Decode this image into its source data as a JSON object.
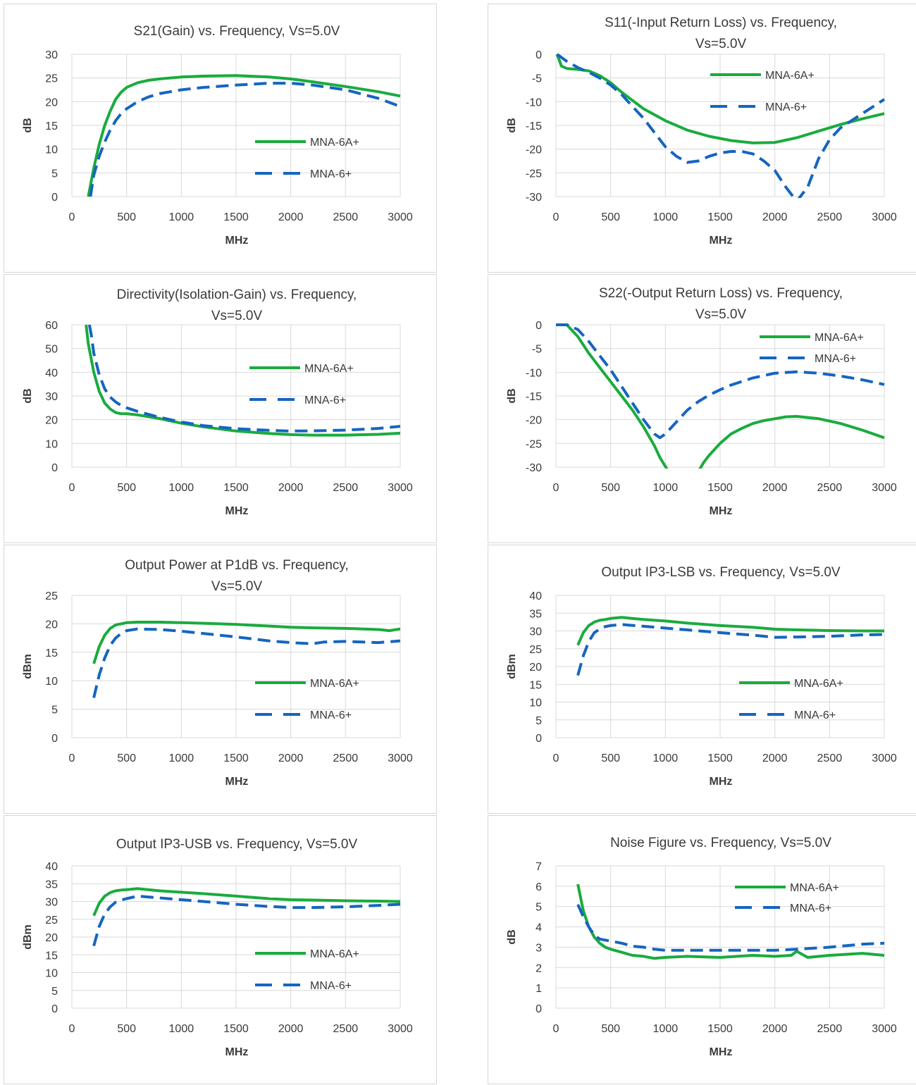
{
  "colors": {
    "mna6a": "#1aab3e",
    "mna6": "#1565c0"
  },
  "charts": [
    {
      "title": [
        "S21(Gain) vs. Frequency, Vs=5.0V"
      ],
      "ylabel": "dB",
      "xlabel": "MHz",
      "ylim": [
        0,
        30
      ],
      "yticks": [
        0,
        5,
        10,
        15,
        20,
        25,
        30
      ],
      "xlim": [
        0,
        3000
      ],
      "xticks": [
        0,
        500,
        1000,
        1500,
        2000,
        2500,
        3000
      ],
      "legend": "middle-right",
      "series": [
        {
          "name": "MNA-6A+",
          "style": "solid",
          "x": [
            150,
            200,
            250,
            300,
            350,
            400,
            450,
            500,
            600,
            700,
            800,
            1000,
            1200,
            1500,
            1800,
            2000,
            2200,
            2500,
            2800,
            3000
          ],
          "y": [
            0,
            6,
            11,
            15,
            18,
            20.5,
            22,
            23,
            24,
            24.5,
            24.8,
            25.2,
            25.4,
            25.5,
            25.2,
            24.8,
            24.2,
            23.2,
            22.1,
            21.2
          ]
        },
        {
          "name": "MNA-6+",
          "style": "dashed",
          "x": [
            170,
            200,
            250,
            300,
            350,
            400,
            450,
            500,
            600,
            700,
            800,
            1000,
            1200,
            1500,
            1800,
            2000,
            2200,
            2500,
            2800,
            3000
          ],
          "y": [
            0,
            4.5,
            8.5,
            11.5,
            14,
            16,
            17.5,
            18.5,
            20,
            21,
            21.7,
            22.5,
            23,
            23.5,
            23.9,
            23.9,
            23.5,
            22.5,
            20.7,
            19
          ]
        }
      ]
    },
    {
      "title": [
        "S11(-Input Return Loss) vs. Frequency,",
        "Vs=5.0V"
      ],
      "ylabel": "dB",
      "xlabel": "MHz",
      "ylim": [
        -30,
        0
      ],
      "yticks": [
        0,
        -5,
        -10,
        -15,
        -20,
        -25,
        -30
      ],
      "xlim": [
        0,
        3000
      ],
      "xticks": [
        0,
        500,
        1000,
        1500,
        2000,
        2500,
        3000
      ],
      "legend": "top-right",
      "series": [
        {
          "name": "MNA-6A+",
          "style": "solid",
          "x": [
            10,
            50,
            100,
            200,
            300,
            400,
            500,
            600,
            800,
            1000,
            1200,
            1400,
            1600,
            1800,
            2000,
            2200,
            2400,
            2600,
            2800,
            3000
          ],
          "y": [
            0,
            -2.5,
            -3,
            -3.2,
            -3.5,
            -4.5,
            -6,
            -8,
            -11.5,
            -14,
            -16,
            -17.3,
            -18.2,
            -18.7,
            -18.6,
            -17.6,
            -16.2,
            -14.8,
            -13.6,
            -12.5
          ]
        },
        {
          "name": "MNA-6+",
          "style": "dashed",
          "x": [
            10,
            100,
            200,
            300,
            400,
            500,
            600,
            700,
            800,
            900,
            1000,
            1100,
            1200,
            1300,
            1400,
            1500,
            1600,
            1700,
            1800,
            1900,
            2000,
            2100,
            2200,
            2300,
            2400,
            2500,
            2600,
            2800,
            3000
          ],
          "y": [
            0,
            -1.5,
            -2.8,
            -3.8,
            -5,
            -6.5,
            -8.5,
            -11,
            -13.5,
            -16.5,
            -19.5,
            -21.5,
            -22.8,
            -22.5,
            -21.5,
            -20.8,
            -20.5,
            -20.5,
            -21,
            -22.5,
            -24.5,
            -28,
            -31,
            -28,
            -22,
            -18,
            -15.5,
            -12.5,
            -9.5
          ]
        }
      ]
    },
    {
      "title": [
        "Directivity(Isolation-Gain) vs. Frequency,",
        "Vs=5.0V"
      ],
      "ylabel": "dB",
      "xlabel": "MHz",
      "ylim": [
        0,
        60
      ],
      "yticks": [
        0,
        10,
        20,
        30,
        40,
        50,
        60
      ],
      "xlim": [
        0,
        3000
      ],
      "xticks": [
        0,
        500,
        1000,
        1500,
        2000,
        2500,
        3000
      ],
      "legend": "top-right",
      "series": [
        {
          "name": "MNA-6A+",
          "style": "solid",
          "x": [
            130,
            150,
            200,
            250,
            300,
            350,
            400,
            450,
            500,
            600,
            800,
            1000,
            1200,
            1500,
            1800,
            2000,
            2200,
            2500,
            2800,
            3000
          ],
          "y": [
            60,
            52,
            40,
            32,
            27,
            24.5,
            23,
            22.5,
            22.5,
            22,
            20.5,
            18.5,
            17,
            15.2,
            14.2,
            13.7,
            13.5,
            13.5,
            13.8,
            14.3
          ]
        },
        {
          "name": "MNA-6+",
          "style": "dashed",
          "x": [
            160,
            180,
            200,
            250,
            300,
            350,
            400,
            450,
            500,
            600,
            800,
            1000,
            1200,
            1500,
            1800,
            2000,
            2200,
            2500,
            2800,
            3000
          ],
          "y": [
            60,
            55,
            48,
            39,
            33,
            29.5,
            27.5,
            26,
            25,
            23.5,
            21,
            19,
            17.5,
            16.2,
            15.5,
            15.2,
            15.3,
            15.6,
            16.3,
            17.2
          ]
        }
      ]
    },
    {
      "title": [
        "S22(-Output Return Loss) vs. Frequency,",
        "Vs=5.0V"
      ],
      "ylabel": "dB",
      "xlabel": "MHz",
      "ylim": [
        -30,
        0
      ],
      "yticks": [
        0,
        -5,
        -10,
        -15,
        -20,
        -25,
        -30
      ],
      "xlim": [
        0,
        3000
      ],
      "xticks": [
        0,
        500,
        1000,
        1500,
        2000,
        2500,
        3000
      ],
      "legend": "top-right",
      "series": [
        {
          "name": "MNA-6A+",
          "style": "solid",
          "x": [
            0,
            100,
            200,
            300,
            400,
            500,
            600,
            700,
            800,
            900,
            950,
            1030,
            null,
            1300,
            1350,
            1400,
            1500,
            1600,
            1700,
            1800,
            1900,
            2000,
            2100,
            2200,
            2400,
            2600,
            2800,
            3000
          ],
          "y": [
            0,
            0,
            -2.5,
            -6,
            -9,
            -12,
            -15,
            -18,
            -21.5,
            -25.5,
            -28,
            -31,
            null,
            -31,
            -29,
            -27.5,
            -25,
            -23,
            -21.8,
            -20.8,
            -20.2,
            -19.8,
            -19.4,
            -19.3,
            -19.8,
            -20.8,
            -22.2,
            -23.8
          ]
        },
        {
          "name": "MNA-6+",
          "style": "dashed",
          "x": [
            0,
            100,
            200,
            300,
            400,
            500,
            600,
            700,
            800,
            900,
            950,
            1000,
            1100,
            1200,
            1300,
            1400,
            1500,
            1600,
            1800,
            2000,
            2200,
            2400,
            2600,
            2800,
            3000
          ],
          "y": [
            0,
            0,
            -1,
            -3.5,
            -6.5,
            -9.5,
            -13,
            -16.5,
            -20,
            -23,
            -23.8,
            -23,
            -20.5,
            -18,
            -16.2,
            -14.8,
            -13.7,
            -12.7,
            -11.2,
            -10.2,
            -9.9,
            -10.2,
            -10.8,
            -11.6,
            -12.6
          ]
        }
      ]
    },
    {
      "title": [
        "Output Power at P1dB vs. Frequency,",
        "Vs=5.0V"
      ],
      "ylabel": "dBm",
      "xlabel": "MHz",
      "ylim": [
        0,
        25
      ],
      "yticks": [
        0,
        5,
        10,
        15,
        20,
        25
      ],
      "xlim": [
        0,
        3000
      ],
      "xticks": [
        0,
        500,
        1000,
        1500,
        2000,
        2500,
        3000
      ],
      "legend": "middle-right",
      "series": [
        {
          "name": "MNA-6A+",
          "style": "solid",
          "x": [
            200,
            250,
            300,
            350,
            400,
            450,
            500,
            600,
            800,
            1000,
            1200,
            1500,
            1800,
            2000,
            2200,
            2500,
            2800,
            2900,
            3000
          ],
          "y": [
            13,
            16,
            18,
            19.2,
            19.8,
            20,
            20.2,
            20.3,
            20.3,
            20.2,
            20.1,
            19.9,
            19.6,
            19.4,
            19.3,
            19.2,
            19,
            18.8,
            19.1
          ]
        },
        {
          "name": "MNA-6+",
          "style": "dashed",
          "x": [
            200,
            250,
            300,
            350,
            400,
            450,
            500,
            600,
            800,
            1000,
            1200,
            1500,
            1800,
            2000,
            2200,
            2300,
            2500,
            2800,
            3000
          ],
          "y": [
            7,
            11,
            14,
            16.2,
            17.5,
            18.3,
            18.8,
            19.1,
            19,
            18.7,
            18.3,
            17.7,
            17,
            16.7,
            16.5,
            16.8,
            16.9,
            16.7,
            17
          ]
        }
      ]
    },
    {
      "title": [
        "Output IP3-LSB vs. Frequency, Vs=5.0V"
      ],
      "ylabel": "dBm",
      "xlabel": "MHz",
      "ylim": [
        0,
        40
      ],
      "yticks": [
        0,
        5,
        10,
        15,
        20,
        25,
        30,
        35,
        40
      ],
      "xlim": [
        0,
        3000
      ],
      "xticks": [
        0,
        500,
        1000,
        1500,
        2000,
        2500,
        3000
      ],
      "legend": "middle-right",
      "series": [
        {
          "name": "MNA-6A+",
          "style": "solid",
          "x": [
            200,
            250,
            300,
            350,
            400,
            450,
            500,
            600,
            800,
            1000,
            1200,
            1500,
            1800,
            2000,
            2200,
            2500,
            2800,
            3000
          ],
          "y": [
            26,
            29.5,
            31.5,
            32.5,
            33,
            33.2,
            33.5,
            33.8,
            33.2,
            32.8,
            32.2,
            31.5,
            31,
            30.5,
            30.3,
            30.1,
            30,
            30
          ]
        },
        {
          "name": "MNA-6+",
          "style": "dashed",
          "x": [
            200,
            250,
            300,
            350,
            400,
            450,
            500,
            600,
            800,
            1000,
            1200,
            1500,
            1800,
            2000,
            2200,
            2500,
            2800,
            3000
          ],
          "y": [
            17.5,
            23,
            27,
            29.5,
            30.5,
            31.2,
            31.5,
            31.8,
            31.3,
            30.8,
            30.3,
            29.5,
            28.8,
            28.2,
            28.3,
            28.5,
            28.9,
            29
          ]
        }
      ]
    },
    {
      "title": [
        "Output IP3-USB vs. Frequency, Vs=5.0V"
      ],
      "ylabel": "dBm",
      "xlabel": "MHz",
      "ylim": [
        0,
        40
      ],
      "yticks": [
        0,
        5,
        10,
        15,
        20,
        25,
        30,
        35,
        40
      ],
      "xlim": [
        0,
        3000
      ],
      "xticks": [
        0,
        500,
        1000,
        1500,
        2000,
        2500,
        3000
      ],
      "legend": "middle-right",
      "series": [
        {
          "name": "MNA-6A+",
          "style": "solid",
          "x": [
            200,
            250,
            300,
            350,
            400,
            450,
            500,
            600,
            800,
            1000,
            1200,
            1500,
            1800,
            2000,
            2200,
            2500,
            2800,
            3000
          ],
          "y": [
            26,
            29.5,
            31.5,
            32.5,
            33,
            33.2,
            33.3,
            33.6,
            33,
            32.6,
            32.2,
            31.5,
            30.8,
            30.5,
            30.4,
            30.2,
            30.1,
            30
          ]
        },
        {
          "name": "MNA-6+",
          "style": "dashed",
          "x": [
            200,
            250,
            300,
            350,
            400,
            450,
            500,
            600,
            800,
            1000,
            1200,
            1500,
            1800,
            2000,
            2200,
            2500,
            2800,
            3000
          ],
          "y": [
            17.5,
            23,
            26.5,
            28.5,
            29.8,
            30.4,
            30.8,
            31.5,
            31,
            30.5,
            30,
            29.2,
            28.6,
            28.3,
            28.3,
            28.5,
            28.9,
            29.2
          ]
        }
      ]
    },
    {
      "title": [
        "Noise Figure vs. Frequency, Vs=5.0V"
      ],
      "ylabel": "dB",
      "xlabel": "MHz",
      "ylim": [
        0,
        7
      ],
      "yticks": [
        0,
        1,
        2,
        3,
        4,
        5,
        6,
        7
      ],
      "xlim": [
        0,
        3000
      ],
      "xticks": [
        0,
        500,
        1000,
        1500,
        2000,
        2500,
        3000
      ],
      "legend": "top-right",
      "series": [
        {
          "name": "MNA-6A+",
          "style": "solid",
          "x": [
            200,
            250,
            300,
            350,
            400,
            450,
            500,
            600,
            700,
            800,
            900,
            1000,
            1200,
            1500,
            1800,
            2000,
            2150,
            2200,
            2300,
            2500,
            2800,
            3000
          ],
          "y": [
            6.1,
            4.8,
            4,
            3.5,
            3.2,
            3,
            2.9,
            2.75,
            2.6,
            2.55,
            2.45,
            2.5,
            2.55,
            2.5,
            2.6,
            2.55,
            2.6,
            2.8,
            2.5,
            2.6,
            2.7,
            2.6
          ]
        },
        {
          "name": "MNA-6+",
          "style": "dashed",
          "x": [
            200,
            250,
            300,
            350,
            400,
            450,
            500,
            600,
            700,
            800,
            900,
            1000,
            1200,
            1500,
            1800,
            2000,
            2200,
            2500,
            2800,
            3000
          ],
          "y": [
            5.1,
            4.5,
            4,
            3.6,
            3.4,
            3.35,
            3.3,
            3.2,
            3.05,
            3,
            2.9,
            2.85,
            2.85,
            2.85,
            2.85,
            2.85,
            2.9,
            3,
            3.15,
            3.2
          ]
        }
      ]
    }
  ]
}
